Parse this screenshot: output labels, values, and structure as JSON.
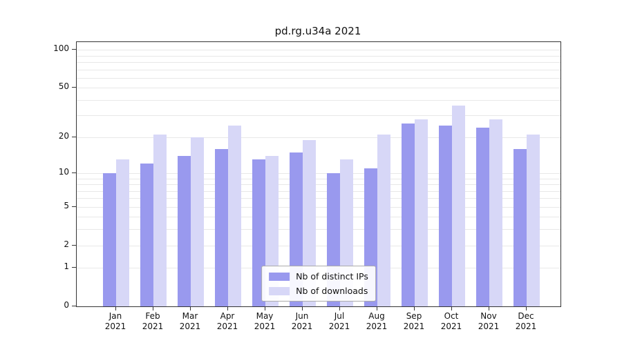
{
  "chart_data": {
    "type": "bar",
    "title": "pd.rg.u34a 2021",
    "categories": [
      "Jan",
      "Feb",
      "Mar",
      "Apr",
      "May",
      "Jun",
      "Jul",
      "Aug",
      "Sep",
      "Oct",
      "Nov",
      "Dec"
    ],
    "year_label": "2021",
    "series": [
      {
        "name": "Nb of distinct IPs",
        "color": "#9999ee",
        "values": [
          10,
          12,
          14,
          16,
          13,
          15,
          10,
          11,
          26,
          25,
          24,
          16
        ]
      },
      {
        "name": "Nb of downloads",
        "color": "#d7d7f7",
        "values": [
          13,
          21,
          20,
          25,
          14,
          19,
          13,
          21,
          28,
          36,
          28,
          21
        ]
      }
    ],
    "xlabel": "",
    "ylabel": "",
    "y_scale": "log1p",
    "ylim": [
      0,
      115
    ],
    "y_ticks": [
      0,
      1,
      2,
      5,
      10,
      20,
      50,
      100
    ],
    "grid_values": [
      1,
      2,
      3,
      4,
      5,
      6,
      7,
      8,
      9,
      10,
      20,
      30,
      40,
      50,
      60,
      70,
      80,
      90,
      100
    ],
    "grid": "horizontal",
    "legend_position": "lower center inside"
  }
}
